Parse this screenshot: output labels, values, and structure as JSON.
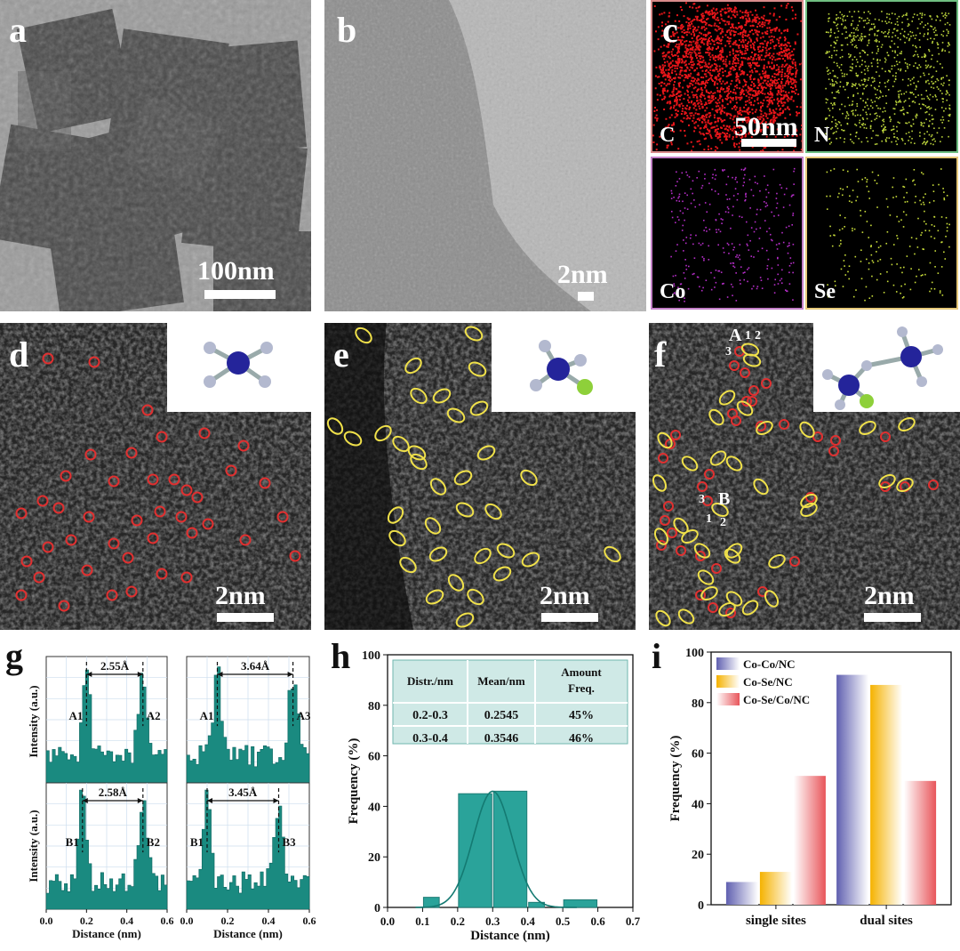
{
  "panels": {
    "a": {
      "label": "a",
      "scalebar": "100nm"
    },
    "b": {
      "label": "b",
      "scalebar": "2nm"
    },
    "c": {
      "label": "c",
      "scalebar": "50nm",
      "maps": [
        {
          "element": "C",
          "color": "#e8161a",
          "border": "#d98b8b"
        },
        {
          "element": "N",
          "color": "#b9d13b",
          "border": "#6fbf82"
        },
        {
          "element": "Co",
          "color": "#b52ec8",
          "border": "#c27fc7"
        },
        {
          "element": "Se",
          "color": "#c9dd3a",
          "border": "#e7c97a"
        }
      ]
    },
    "d": {
      "label": "d",
      "scalebar": "2nm"
    },
    "e": {
      "label": "e",
      "scalebar": "2nm"
    },
    "f": {
      "label": "f",
      "scalebar": "2nm",
      "markers": {
        "A": "A",
        "B": "B",
        "n1": "1",
        "n2": "2",
        "n3": "3"
      }
    }
  },
  "panel_g": {
    "label": "g",
    "ylabel": "Intensity (a.u.)",
    "xlabel": "Distance (nm)",
    "subplots": [
      {
        "distance": "2.55Å",
        "left": "A1",
        "right": "A2",
        "xticks": []
      },
      {
        "distance": "3.64Å",
        "left": "A1",
        "right": "A3",
        "xticks": []
      },
      {
        "distance": "2.58Å",
        "left": "B1",
        "right": "B2",
        "xticks": [
          "0.0",
          "0.2",
          "0.4",
          "0.6"
        ]
      },
      {
        "distance": "3.45Å",
        "left": "B1",
        "right": "B3",
        "xticks": [
          "0.0",
          "0.2",
          "0.4",
          "0.6"
        ]
      }
    ]
  },
  "chart_data": [
    {
      "type": "bar",
      "panel": "h",
      "xlabel": "Distance (nm)",
      "ylabel": "Frequency (%)",
      "xlim": [
        0.0,
        0.7
      ],
      "ylim": [
        0,
        100
      ],
      "xticks": [
        "0.0",
        "0.1",
        "0.2",
        "0.3",
        "0.4",
        "0.5",
        "0.6",
        "0.7"
      ],
      "yticks": [
        "0",
        "20",
        "40",
        "60",
        "80",
        "100"
      ],
      "bins": [
        {
          "x0": 0.1,
          "x1": 0.15,
          "value": 4
        },
        {
          "x0": 0.2,
          "x1": 0.3,
          "value": 45
        },
        {
          "x0": 0.3,
          "x1": 0.4,
          "value": 46
        },
        {
          "x0": 0.4,
          "x1": 0.45,
          "value": 2
        },
        {
          "x0": 0.5,
          "x1": 0.6,
          "value": 3
        }
      ],
      "fit_curve": {
        "type": "gaussian",
        "mean": 0.3,
        "peak": 46,
        "sigma": 0.055
      },
      "table": {
        "headers": [
          "Distr./nm",
          "Mean/nm",
          "Amount Freq."
        ],
        "rows": [
          [
            "0.2-0.3",
            "0.2545",
            "45%"
          ],
          [
            "0.3-0.4",
            "0.3546",
            "46%"
          ]
        ]
      }
    },
    {
      "type": "bar",
      "panel": "i",
      "categories": [
        "single sites",
        "dual sites"
      ],
      "series": [
        {
          "name": "Co-Co/NC",
          "values": [
            9,
            91
          ],
          "color": "#6a6ab8"
        },
        {
          "name": "Co-Se/NC",
          "values": [
            13,
            87
          ],
          "color": "#f5b200"
        },
        {
          "name": "Co-Se/Co/NC",
          "values": [
            51,
            49
          ],
          "color": "#e8555a"
        }
      ],
      "ylabel": "Frequency (%)",
      "ylim": [
        0,
        100
      ],
      "yticks": [
        "0",
        "20",
        "40",
        "60",
        "80",
        "100"
      ],
      "legend": "top-left"
    }
  ]
}
